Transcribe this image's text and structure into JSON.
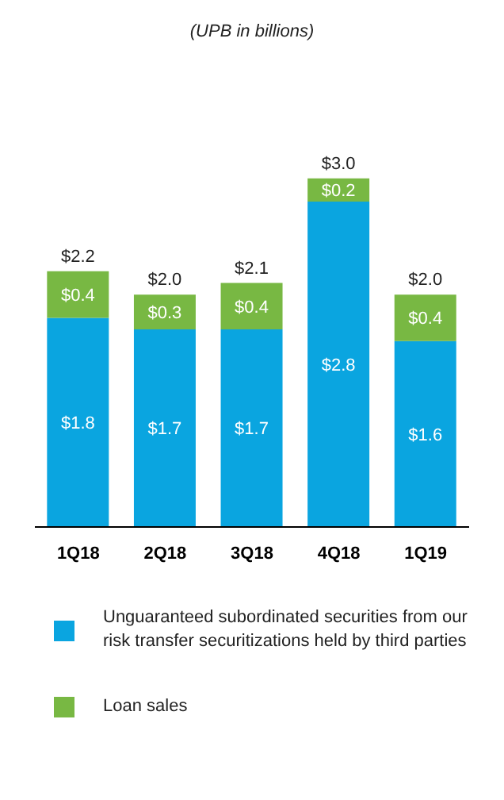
{
  "chart_data": {
    "type": "bar",
    "subtitle": "(UPB in billions)",
    "categories": [
      "1Q18",
      "2Q18",
      "3Q18",
      "4Q18",
      "1Q19"
    ],
    "stacked": true,
    "legend": "bottom",
    "series": [
      {
        "name": "Unguaranteed subordinated securities from our risk transfer securitizations held by third parties",
        "color": "#0aa5e0",
        "values": [
          1.8,
          1.7,
          1.7,
          2.8,
          1.6
        ],
        "value_labels": [
          "$1.8",
          "$1.7",
          "$1.7",
          "$2.8",
          "$1.6"
        ]
      },
      {
        "name": "Loan sales",
        "color": "#78b843",
        "values": [
          0.4,
          0.3,
          0.4,
          0.2,
          0.4
        ],
        "value_labels": [
          "$0.4",
          "$0.3",
          "$0.4",
          "$0.2",
          "$0.4"
        ]
      }
    ],
    "totals": [
      "$2.2",
      "$2.0",
      "$2.1",
      "$3.0",
      "$2.0"
    ]
  }
}
